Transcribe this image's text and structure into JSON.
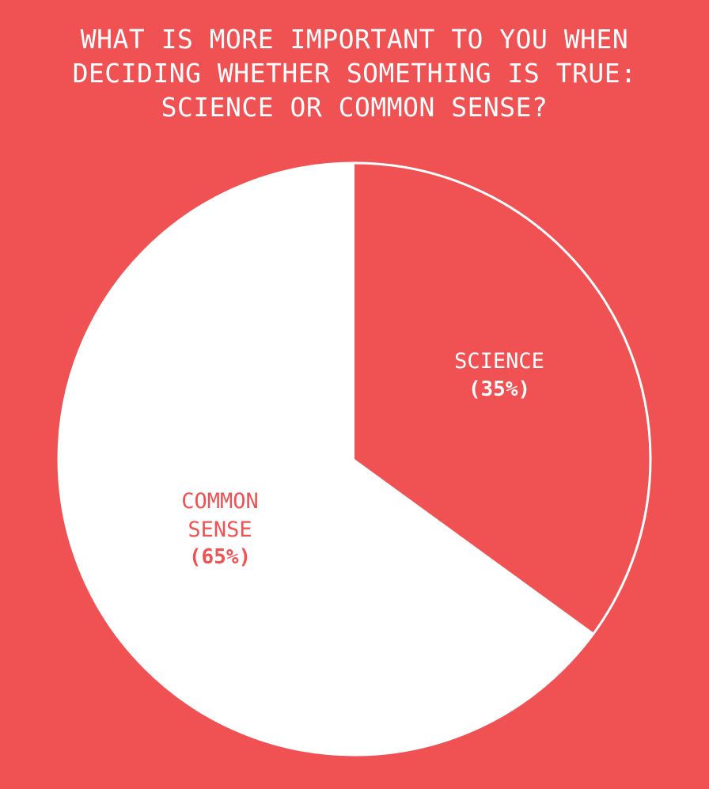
{
  "chart_data": {
    "type": "pie",
    "title_lines": [
      "WHAT IS MORE IMPORTANT TO YOU WHEN",
      "DECIDING WHETHER SOMETHING IS TRUE:",
      "SCIENCE OR COMMON SENSE?"
    ],
    "slices": [
      {
        "label_lines": [
          "SCIENCE"
        ],
        "value": 35,
        "value_label": "(35%)",
        "fill": "#f05254",
        "text_color": "#ffffff"
      },
      {
        "label_lines": [
          "COMMON",
          "SENSE"
        ],
        "value": 65,
        "value_label": "(65%)",
        "fill": "#ffffff",
        "text_color": "#f05254"
      }
    ],
    "start_angle": "12 o'clock",
    "direction": "clockwise",
    "legend": "none"
  },
  "colors": {
    "background": "#f05254",
    "outline": "#ffffff",
    "title": "#ffffff"
  }
}
